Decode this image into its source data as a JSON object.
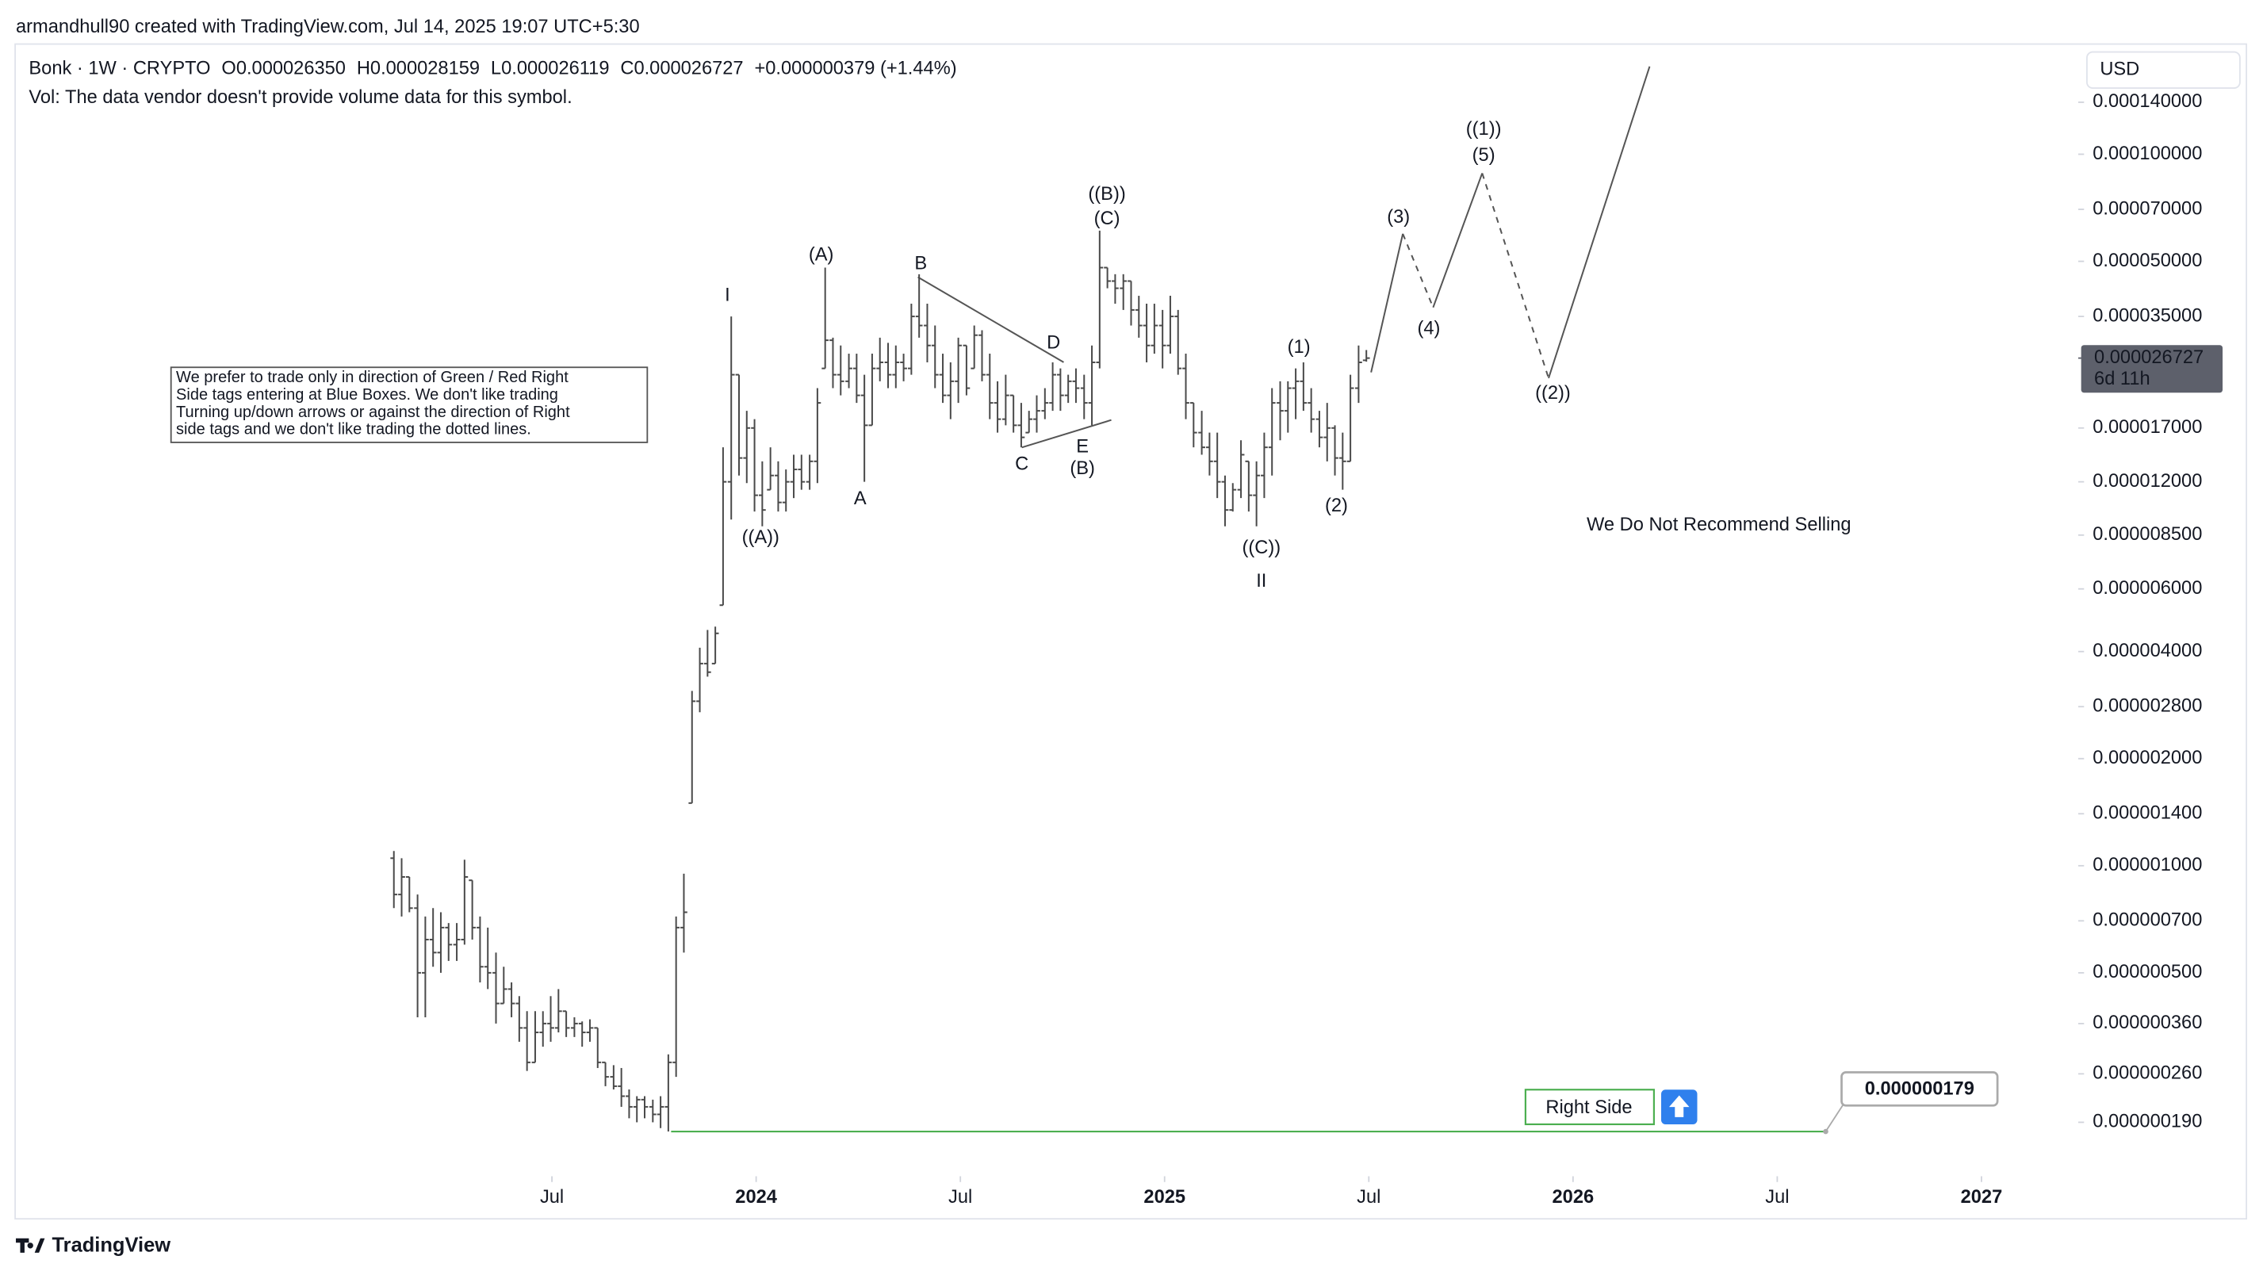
{
  "header": {
    "author_line": "armandhull90 created with TradingView.com, Jul 14, 2025 19:07 UTC+5:30",
    "symbol": "Bonk · 1W · CRYPTO",
    "ohlc": [
      {
        "key": "O",
        "value": "0.000026350"
      },
      {
        "key": "H",
        "value": "0.000028159"
      },
      {
        "key": "L",
        "value": "0.000026119"
      },
      {
        "key": "C",
        "value": "0.000026727"
      }
    ],
    "change": "+0.000000379 (+1.44%)",
    "volume_note": "Vol: The data vendor doesn't provide volume data for this symbol.",
    "currency": "USD",
    "footer": "TradingView"
  },
  "chart_data": {
    "type": "ohlc",
    "y_scale": "log",
    "grid": false,
    "color": "#4a4a4a",
    "xlim": [
      2022.184,
      2027.237
    ],
    "ylim": [
      1.34e-07,
      0.000205
    ],
    "xticks": [
      {
        "value": 2023.5,
        "label": "Jul"
      },
      2024,
      {
        "value": 2024.5,
        "label": "Jul"
      },
      2025,
      {
        "value": 2025.5,
        "label": "Jul"
      },
      2026,
      {
        "value": 2026.5,
        "label": "Jul"
      },
      2027
    ],
    "yticks": [
      {
        "value": 0.00014,
        "label": "0.000140000"
      },
      {
        "value": 0.0001,
        "label": "0.000100000"
      },
      {
        "value": 7e-05,
        "label": "0.000070000"
      },
      {
        "value": 5e-05,
        "label": "0.000050000"
      },
      {
        "value": 3.5e-05,
        "label": "0.000035000"
      },
      {
        "value": 1.7e-05,
        "label": "0.000017000"
      },
      {
        "value": 1.2e-05,
        "label": "0.000012000"
      },
      {
        "value": 8.5e-06,
        "label": "0.000008500"
      },
      {
        "value": 6e-06,
        "label": "0.000006000"
      },
      {
        "value": 4e-06,
        "label": "0.000004000"
      },
      {
        "value": 2.8e-06,
        "label": "0.000002800"
      },
      {
        "value": 2e-06,
        "label": "0.000002000"
      },
      {
        "value": 1.4e-06,
        "label": "0.000001400"
      },
      {
        "value": 1e-06,
        "label": "0.000001000"
      },
      {
        "value": 7e-07,
        "label": "0.000000700"
      },
      {
        "value": 5e-07,
        "label": "0.000000500"
      },
      {
        "value": 3.6e-07,
        "label": "0.000000360"
      },
      {
        "value": 2.6e-07,
        "label": "0.000000260"
      },
      {
        "value": 1.9e-07,
        "label": "0.000000190"
      }
    ],
    "x": [
      2023.113,
      2023.132,
      2023.151,
      2023.171,
      2023.19,
      2023.209,
      2023.228,
      2023.247,
      2023.267,
      2023.286,
      2023.305,
      2023.324,
      2023.343,
      2023.363,
      2023.382,
      2023.401,
      2023.42,
      2023.439,
      2023.459,
      2023.478,
      2023.497,
      2023.516,
      2023.535,
      2023.555,
      2023.574,
      2023.593,
      2023.612,
      2023.631,
      2023.651,
      2023.67,
      2023.689,
      2023.708,
      2023.727,
      2023.747,
      2023.766,
      2023.785,
      2023.804,
      2023.823,
      2023.843,
      2023.862,
      2023.881,
      2023.9,
      2023.919,
      2023.939,
      2023.958,
      2023.977,
      2023.996,
      2024.015,
      2024.035,
      2024.054,
      2024.073,
      2024.092,
      2024.111,
      2024.131,
      2024.15,
      2024.169,
      2024.188,
      2024.207,
      2024.227,
      2024.246,
      2024.265,
      2024.284,
      2024.303,
      2024.323,
      2024.342,
      2024.361,
      2024.38,
      2024.399,
      2024.419,
      2024.438,
      2024.457,
      2024.476,
      2024.495,
      2024.515,
      2024.534,
      2024.553,
      2024.572,
      2024.591,
      2024.611,
      2024.63,
      2024.649,
      2024.668,
      2024.687,
      2024.707,
      2024.726,
      2024.745,
      2024.764,
      2024.783,
      2024.803,
      2024.822,
      2024.841,
      2024.86,
      2024.879,
      2024.899,
      2024.918,
      2024.937,
      2024.956,
      2024.975,
      2024.995,
      2025.014,
      2025.033,
      2025.052,
      2025.071,
      2025.091,
      2025.11,
      2025.129,
      2025.148,
      2025.167,
      2025.187,
      2025.206,
      2025.225,
      2025.244,
      2025.263,
      2025.283,
      2025.302,
      2025.321,
      2025.34,
      2025.359,
      2025.379,
      2025.398,
      2025.417,
      2025.436,
      2025.455,
      2025.475,
      2025.494
    ],
    "open": [
      1.05e-06,
      8.3e-07,
      9.3e-07,
      7.6e-07,
      5e-07,
      6.2e-07,
      5.7e-07,
      6.7e-07,
      6e-07,
      6.2e-07,
      9.1e-07,
      6.7e-07,
      5.2e-07,
      5e-07,
      4.1e-07,
      4.5e-07,
      4.1e-07,
      3.5e-07,
      2.8e-07,
      3.4e-07,
      3.6e-07,
      3.5e-07,
      3.9e-07,
      3.5e-07,
      3.6e-07,
      3.4e-07,
      3.5e-07,
      2.8e-07,
      2.55e-07,
      2.4e-07,
      2.25e-07,
      2.1e-07,
      2.2e-07,
      2.1e-07,
      2e-07,
      2.1e-07,
      2.8e-07,
      6.7e-07,
      1.5e-06,
      2.9e-06,
      3.7e-06,
      3.7e-06,
      5.4e-06,
      1.2e-05,
      2.4e-05,
      1.4e-05,
      1.7e-05,
      1.1e-05,
      1.14e-05,
      1.25e-05,
      1.05e-05,
      1.2e-05,
      1.3e-05,
      1.2e-05,
      1.37e-05,
      2.5e-05,
      3e-05,
      2.4e-05,
      2.3e-05,
      2.5e-05,
      2.1e-05,
      1.73e-05,
      2.5e-05,
      2.6e-05,
      2.4e-05,
      2.6e-05,
      2.5e-05,
      3.5e-05,
      3.3e-05,
      2.9e-05,
      2.4e-05,
      2.1e-05,
      2.3e-05,
      2.9e-05,
      2.5e-05,
      3.1e-05,
      2.4e-05,
      2e-05,
      1.8e-05,
      2.1e-05,
      1.73e-05,
      1.65e-05,
      1.8e-05,
      1.9e-05,
      2e-05,
      2.4e-05,
      2.1e-05,
      2.3e-05,
      2.2e-05,
      2e-05,
      2.6e-05,
      4.8e-05,
      4.4e-05,
      4.2e-05,
      4.4e-05,
      3.65e-05,
      3.3e-05,
      2.9e-05,
      3.3e-05,
      2.9e-05,
      3.5e-05,
      2.5e-05,
      2e-05,
      1.65e-05,
      1.5e-05,
      1.37e-05,
      1.2e-05,
      1e-05,
      1.14e-05,
      1.37e-05,
      1.1e-05,
      1.25e-05,
      1.5e-05,
      2e-05,
      1.9e-05,
      2.2e-05,
      2.3e-05,
      2e-05,
      1.8e-05,
      1.6e-05,
      1.7e-05,
      1.4e-05,
      1.37e-05,
      2.2e-05,
      2.635e-05
    ],
    "high": [
      1.1e-06,
      1.05e-06,
      9.3e-07,
      8.3e-07,
      7.2e-07,
      7.6e-07,
      7.4e-07,
      6.9e-07,
      6.9e-07,
      1.04e-06,
      9.1e-07,
      7.2e-07,
      6.7e-07,
      5.7e-07,
      5.2e-07,
      4.7e-07,
      4.3e-07,
      3.9e-07,
      3.9e-07,
      3.9e-07,
      4.3e-07,
      4.5e-07,
      3.9e-07,
      3.75e-07,
      3.65e-07,
      3.7e-07,
      3.5e-07,
      2.8e-07,
      2.75e-07,
      2.7e-07,
      2.35e-07,
      2.25e-07,
      2.25e-07,
      2.2e-07,
      2.25e-07,
      2.95e-07,
      7.2e-07,
      9.5e-07,
      3.1e-06,
      4.1e-06,
      4.6e-06,
      4.7e-06,
      1.5e-05,
      3.5e-05,
      2.4e-05,
      1.9e-05,
      1.8e-05,
      1.37e-05,
      1.5e-05,
      1.37e-05,
      1.3e-05,
      1.43e-05,
      1.43e-05,
      1.43e-05,
      2.2e-05,
      4.8e-05,
      3.05e-05,
      2.9e-05,
      2.75e-05,
      2.75e-05,
      2.4e-05,
      2.75e-05,
      3.05e-05,
      2.95e-05,
      2.9e-05,
      2.75e-05,
      3.8e-05,
      4.6e-05,
      3.8e-05,
      3.3e-05,
      2.75e-05,
      2.6e-05,
      3.05e-05,
      2.9e-05,
      3.3e-05,
      3.2e-05,
      2.75e-05,
      2.3e-05,
      2.4e-05,
      2.1e-05,
      2e-05,
      1.9e-05,
      2.1e-05,
      2.2e-05,
      2.6e-05,
      2.5e-05,
      2.4e-05,
      2.5e-05,
      2.4e-05,
      2.9e-05,
      6.1e-05,
      4.8e-05,
      4.6e-05,
      4.6e-05,
      4.4e-05,
      4e-05,
      3.8e-05,
      3.8e-05,
      3.65e-05,
      4e-05,
      3.65e-05,
      2.75e-05,
      2e-05,
      1.9e-05,
      1.65e-05,
      1.65e-05,
      1.25e-05,
      1.19e-05,
      1.57e-05,
      1.37e-05,
      1.37e-05,
      1.65e-05,
      2.2e-05,
      2.3e-05,
      2.3e-05,
      2.5e-05,
      2.6e-05,
      2.2e-05,
      1.9e-05,
      2e-05,
      1.73e-05,
      1.65e-05,
      2.4e-05,
      2.9e-05,
      2.8159e-05
    ],
    "low": [
      7.6e-07,
      7.2e-07,
      7.4e-07,
      3.75e-07,
      3.75e-07,
      5.2e-07,
      5e-07,
      5.4e-07,
      5.4e-07,
      6e-07,
      6.2e-07,
      4.7e-07,
      4.5e-07,
      3.6e-07,
      4.1e-07,
      3.75e-07,
      3.2e-07,
      2.65e-07,
      2.8e-07,
      3.1e-07,
      3.2e-07,
      3.4e-07,
      3.3e-07,
      3.3e-07,
      3.1e-07,
      3.2e-07,
      2.7e-07,
      2.4e-07,
      2.35e-07,
      2.1e-07,
      1.95e-07,
      1.9e-07,
      1.95e-07,
      1.9e-07,
      1.83e-07,
      1.79e-07,
      2.55e-07,
      5.7e-07,
      1.5e-06,
      2.7e-06,
      3.4e-06,
      3.7e-06,
      5.4e-06,
      9.4e-06,
      1.25e-05,
      1.19e-05,
      9.9e-06,
      9e-06,
      1.14e-05,
      9.9e-06,
      9.9e-06,
      1.08e-05,
      1.14e-05,
      1.14e-05,
      1.19e-05,
      2.5e-05,
      2.2e-05,
      2.1e-05,
      2.2e-05,
      2e-05,
      1.2e-05,
      1.73e-05,
      2.3e-05,
      2.2e-05,
      2.2e-05,
      2.3e-05,
      2.4e-05,
      3.05e-05,
      2.6e-05,
      2.2e-05,
      2e-05,
      1.8e-05,
      2e-05,
      2.1e-05,
      2.5e-05,
      2.3e-05,
      1.8e-05,
      1.65e-05,
      1.73e-05,
      1.65e-05,
      1.5e-05,
      1.65e-05,
      1.65e-05,
      1.8e-05,
      1.9e-05,
      1.9e-05,
      2e-05,
      2e-05,
      1.8e-05,
      1.73e-05,
      2.5e-05,
      4.2e-05,
      3.8e-05,
      3.65e-05,
      3.3e-05,
      3.05e-05,
      2.6e-05,
      2.75e-05,
      2.5e-05,
      2.75e-05,
      2.4e-05,
      1.8e-05,
      1.5e-05,
      1.43e-05,
      1.25e-05,
      1.08e-05,
      9e-06,
      9.9e-06,
      1.08e-05,
      9.9e-06,
      9e-06,
      1.08e-05,
      1.25e-05,
      1.57e-05,
      1.65e-05,
      1.8e-05,
      1.9e-05,
      1.65e-05,
      1.5e-05,
      1.37e-05,
      1.25e-05,
      1.14e-05,
      1.37e-05,
      2e-05,
      2.6119e-05
    ],
    "close": [
      8.3e-07,
      9.3e-07,
      7.6e-07,
      5e-07,
      6.2e-07,
      5.7e-07,
      6.7e-07,
      6e-07,
      6.2e-07,
      9.3e-07,
      6.7e-07,
      5.2e-07,
      5e-07,
      4.1e-07,
      4.5e-07,
      4.1e-07,
      3.5e-07,
      2.8e-07,
      3.4e-07,
      3.6e-07,
      3.5e-07,
      3.9e-07,
      3.5e-07,
      3.6e-07,
      3.4e-07,
      3.5e-07,
      2.8e-07,
      2.55e-07,
      2.4e-07,
      2.25e-07,
      2.1e-07,
      2.2e-07,
      2.1e-07,
      2e-07,
      2.1e-07,
      2.8e-07,
      6.7e-07,
      7.4e-07,
      2.9e-06,
      3.7e-06,
      3.5e-06,
      4.5e-06,
      1.2e-05,
      2.4e-05,
      1.4e-05,
      1.7e-05,
      1.1e-05,
      1e-05,
      1.25e-05,
      1.05e-05,
      1.2e-05,
      1.3e-05,
      1.2e-05,
      1.37e-05,
      2e-05,
      3e-05,
      2.4e-05,
      2.3e-05,
      2.5e-05,
      2.1e-05,
      1.73e-05,
      2.5e-05,
      2.6e-05,
      2.4e-05,
      2.6e-05,
      2.5e-05,
      3.5e-05,
      3.3e-05,
      2.9e-05,
      2.4e-05,
      2.1e-05,
      2.3e-05,
      2.9e-05,
      2.2e-05,
      3.1e-05,
      2.4e-05,
      2e-05,
      1.8e-05,
      2.1e-05,
      1.73e-05,
      1.6e-05,
      1.8e-05,
      1.9e-05,
      2e-05,
      2.4e-05,
      2.1e-05,
      2.3e-05,
      2.2e-05,
      2e-05,
      2.6e-05,
      4.8e-05,
      4.4e-05,
      4.2e-05,
      4.4e-05,
      3.65e-05,
      3.3e-05,
      2.9e-05,
      3.3e-05,
      2.9e-05,
      3.5e-05,
      2.5e-05,
      2e-05,
      1.65e-05,
      1.5e-05,
      1.37e-05,
      1.2e-05,
      1e-05,
      1.14e-05,
      1.43e-05,
      1.1e-05,
      1.25e-05,
      1.5e-05,
      2e-05,
      1.9e-05,
      2.2e-05,
      2.3e-05,
      2e-05,
      1.8e-05,
      1.6e-05,
      1.7e-05,
      1.4e-05,
      1.37e-05,
      2.2e-05,
      2.6e-05,
      2.6727e-05
    ],
    "last_price": {
      "value": 2.6727e-05,
      "label": "0.000026727",
      "countdown": "6d 11h"
    },
    "price_line": {
      "value": 1.79e-07,
      "label": "0.000000179",
      "color": "#4caf50"
    },
    "annotations": [
      {
        "text": "I",
        "color": "#f23645"
      },
      {
        "text": "((A))",
        "color": "#434651"
      },
      {
        "text": "(A)",
        "color": "#2962ff"
      },
      {
        "text": "A",
        "color": "#f23645"
      },
      {
        "text": "B",
        "color": "#f23645"
      },
      {
        "text": "C",
        "color": "#f23645"
      },
      {
        "text": "D",
        "color": "#f23645"
      },
      {
        "text": "E",
        "color": "#f23645"
      },
      {
        "text": "(B)",
        "color": "#2962ff"
      },
      {
        "text": "((B))",
        "color": "#434651"
      },
      {
        "text": "(C)",
        "color": "#2962ff"
      },
      {
        "text": "((C))",
        "color": "#434651"
      },
      {
        "text": "II",
        "color": "#f23645"
      },
      {
        "text": "(1)",
        "color": "#2962ff"
      },
      {
        "text": "(2)",
        "color": "#2962ff"
      },
      {
        "text": "(3)",
        "color": "#2962ff"
      },
      {
        "text": "(4)",
        "color": "#2962ff"
      },
      {
        "text": "(5)",
        "color": "#2962ff"
      },
      {
        "text": "((1))",
        "color": "#434651"
      },
      {
        "text": "((2))",
        "color": "#434651"
      },
      {
        "text": "We Do Not Recommend Selling",
        "color": "#f23645"
      }
    ],
    "note": [
      "We prefer to trade only in direction of Green / Red Right",
      "Side tags entering at Blue Boxes. We don't like trading",
      "Turning up/down arrows or against the direction of Right",
      "side tags and we don't like trading the dotted lines."
    ],
    "right_side_tag": "Right Side"
  }
}
